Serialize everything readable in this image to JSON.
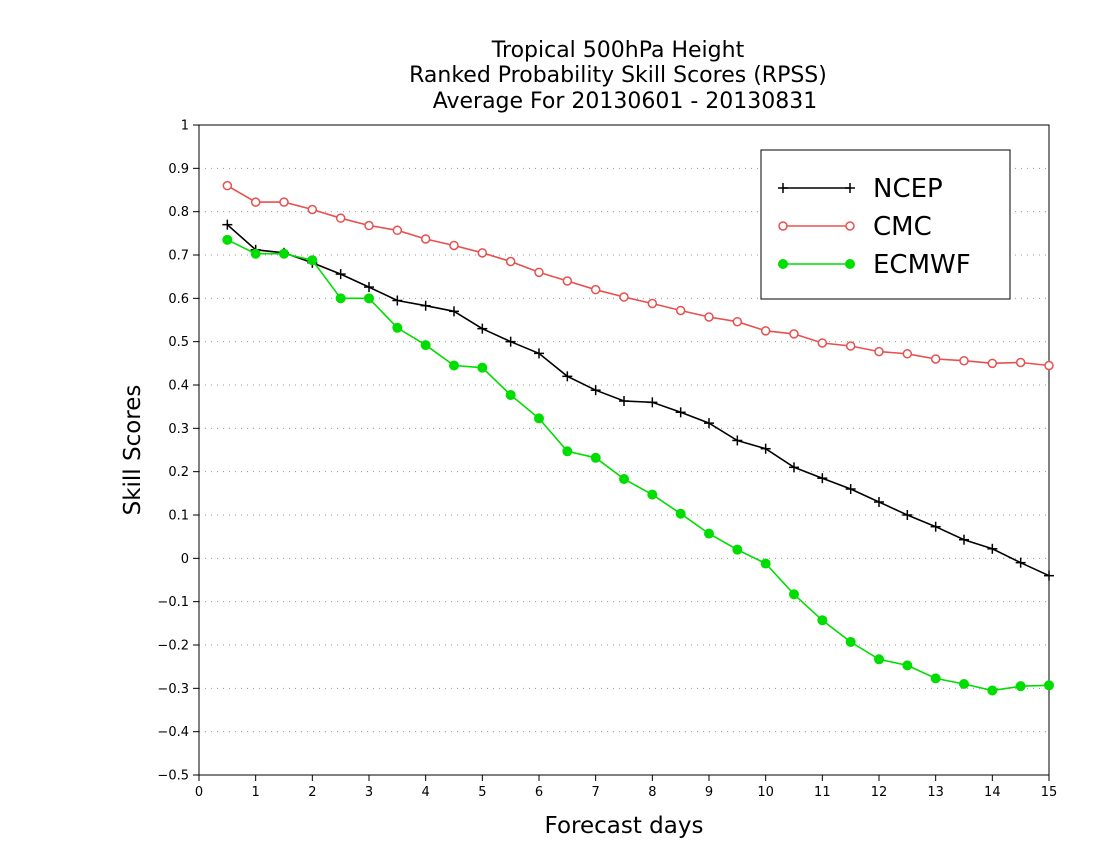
{
  "chart_data": {
    "type": "line",
    "title": [
      "Tropical 500hPa Height",
      "Ranked Probability Skill Scores (RPSS)",
      "Average For 20130601 - 20130831"
    ],
    "xlabel": "Forecast days",
    "ylabel": "Skill Scores",
    "xlim": [
      0,
      15
    ],
    "ylim": [
      -0.5,
      1
    ],
    "xticks": [
      0,
      1,
      2,
      3,
      4,
      5,
      6,
      7,
      8,
      9,
      10,
      11,
      12,
      13,
      14,
      15
    ],
    "xtick_labels": [
      "0",
      "1",
      "2",
      "3",
      "4",
      "5",
      "6",
      "7",
      "8",
      "9",
      "10",
      "11",
      "12",
      "13",
      "14",
      "15"
    ],
    "yticks": [
      -0.5,
      -0.4,
      -0.3,
      -0.2,
      -0.1,
      0,
      0.1,
      0.2,
      0.3,
      0.4,
      0.5,
      0.6,
      0.7,
      0.8,
      0.9,
      1
    ],
    "ytick_labels": [
      "−0.5",
      "−0.4",
      "−0.3",
      "−0.2",
      "−0.1",
      "0",
      "0.1",
      "0.2",
      "0.3",
      "0.4",
      "0.5",
      "0.6",
      "0.7",
      "0.8",
      "0.9",
      "1"
    ],
    "grid": "horizontal dotted",
    "legend_position": "top-right",
    "x": [
      0.5,
      1,
      1.5,
      2,
      2.5,
      3,
      3.5,
      4,
      4.5,
      5,
      5.5,
      6,
      6.5,
      7,
      7.5,
      8,
      8.5,
      9,
      9.5,
      10,
      10.5,
      11,
      11.5,
      12,
      12.5,
      13,
      13.5,
      14,
      14.5,
      15
    ],
    "series": [
      {
        "name": "NCEP",
        "color": "#000000",
        "marker": "plus",
        "values": [
          0.77,
          0.712,
          0.705,
          0.682,
          0.656,
          0.626,
          0.595,
          0.583,
          0.57,
          0.53,
          0.5,
          0.473,
          0.42,
          0.388,
          0.363,
          0.36,
          0.337,
          0.312,
          0.272,
          0.253,
          0.21,
          0.185,
          0.16,
          0.13,
          0.1,
          0.073,
          0.043,
          0.022,
          -0.01,
          -0.04
        ]
      },
      {
        "name": "CMC",
        "color": "#e8504f",
        "marker": "open-circle",
        "values": [
          0.86,
          0.822,
          0.822,
          0.805,
          0.785,
          0.768,
          0.757,
          0.737,
          0.722,
          0.705,
          0.685,
          0.66,
          0.64,
          0.62,
          0.603,
          0.588,
          0.572,
          0.557,
          0.546,
          0.525,
          0.518,
          0.497,
          0.49,
          0.477,
          0.472,
          0.46,
          0.456,
          0.45,
          0.452,
          0.445
        ]
      },
      {
        "name": "ECMWF",
        "color": "#00dd00",
        "marker": "filled-circle",
        "values": [
          0.735,
          0.703,
          0.703,
          0.688,
          0.6,
          0.6,
          0.532,
          0.492,
          0.445,
          0.44,
          0.377,
          0.323,
          0.247,
          0.232,
          0.183,
          0.147,
          0.103,
          0.057,
          0.02,
          -0.012,
          -0.083,
          -0.143,
          -0.193,
          -0.233,
          -0.247,
          -0.277,
          -0.29,
          -0.305,
          -0.295,
          -0.293
        ]
      }
    ]
  }
}
